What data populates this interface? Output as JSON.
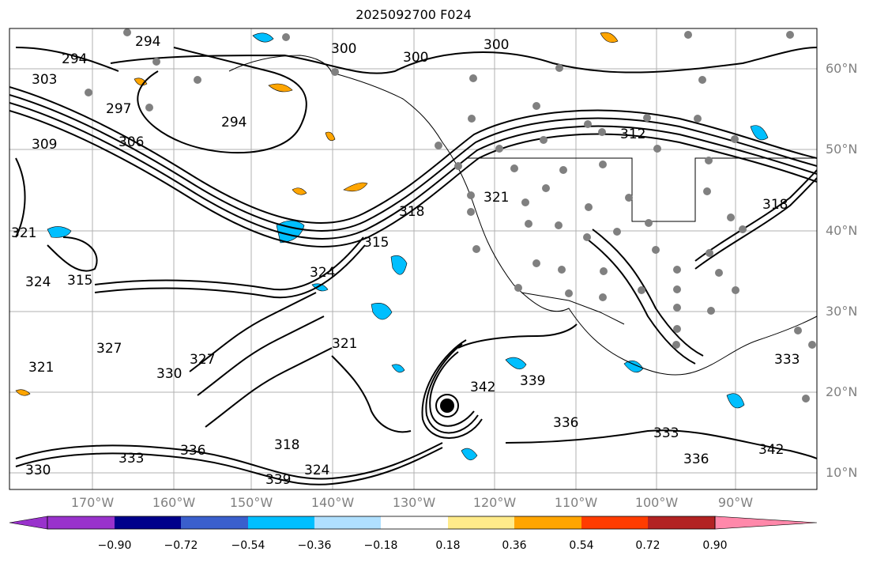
{
  "title": "2025092700 F024",
  "latitude_labels": [
    "60°N",
    "50°N",
    "40°N",
    "30°N",
    "20°N",
    "10°N"
  ],
  "longitude_labels": [
    "170°W",
    "160°W",
    "150°W",
    "140°W",
    "130°W",
    "120°W",
    "110°W",
    "100°W",
    "90°W"
  ],
  "contour_labels": [
    "294",
    "294",
    "294",
    "297",
    "300",
    "300",
    "300",
    "303",
    "306",
    "309",
    "312",
    "315",
    "315",
    "318",
    "318",
    "318",
    "321",
    "321",
    "321",
    "321",
    "324",
    "324",
    "324",
    "327",
    "327",
    "330",
    "330",
    "333",
    "333",
    "333",
    "336",
    "336",
    "336",
    "339",
    "339",
    "342",
    "342"
  ],
  "colorbar": {
    "ticks": [
      "−0.90",
      "−0.72",
      "−0.54",
      "−0.36",
      "−0.18",
      "0.18",
      "0.36",
      "0.54",
      "0.72",
      "0.90"
    ],
    "colors": [
      "#9932cc",
      "#00008b",
      "#3a5fcd",
      "#00bfff",
      "#b0e0ff",
      "#ffffff",
      "#ffeb8a",
      "#ffa500",
      "#ff3c00",
      "#b22222",
      "#ff88aa"
    ]
  },
  "shading_colors": {
    "neg": "#00bfff",
    "pos": "#ffa500"
  }
}
